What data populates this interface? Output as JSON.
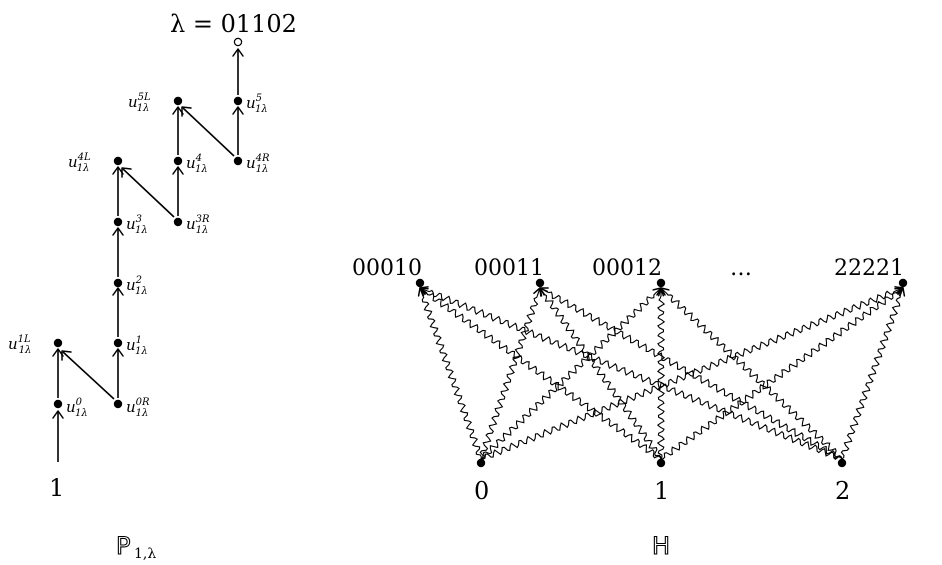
{
  "left_graph": {
    "title": "λ = 01102",
    "start_label": "1",
    "caption_symbol": "P",
    "caption_subscript": "1,λ",
    "nodes": [
      {
        "id": "u0",
        "base": "u",
        "sup": "0",
        "sub": "1λ"
      },
      {
        "id": "u0R",
        "base": "u",
        "sup": "0R",
        "sub": "1λ"
      },
      {
        "id": "u1L",
        "base": "u",
        "sup": "1L",
        "sub": "1λ"
      },
      {
        "id": "u1",
        "base": "u",
        "sup": "1",
        "sub": "1λ"
      },
      {
        "id": "u2",
        "base": "u",
        "sup": "2",
        "sub": "1λ"
      },
      {
        "id": "u3",
        "base": "u",
        "sup": "3",
        "sub": "1λ"
      },
      {
        "id": "u4L",
        "base": "u",
        "sup": "4L",
        "sub": "1λ"
      },
      {
        "id": "u3R",
        "base": "u",
        "sup": "3R",
        "sub": "1λ"
      },
      {
        "id": "u4",
        "base": "u",
        "sup": "4",
        "sub": "1λ"
      },
      {
        "id": "u5L",
        "base": "u",
        "sup": "5L",
        "sub": "1λ"
      },
      {
        "id": "u4R",
        "base": "u",
        "sup": "4R",
        "sub": "1λ"
      },
      {
        "id": "u5",
        "base": "u",
        "sup": "5",
        "sub": "1λ"
      }
    ]
  },
  "right_graph": {
    "caption_symbol": "H",
    "bottom_nodes": [
      "0",
      "1",
      "2"
    ],
    "top_nodes": [
      "00010",
      "00011",
      "00012",
      "22221"
    ],
    "ellipsis": "…"
  }
}
